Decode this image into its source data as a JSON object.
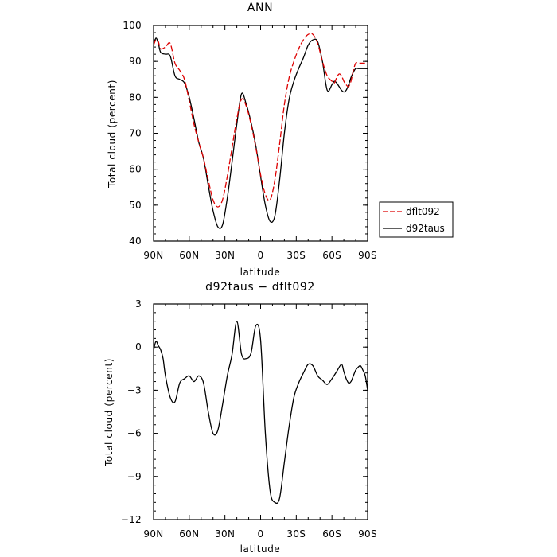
{
  "chart_data": [
    {
      "type": "line",
      "title": "ANN",
      "xlabel": "latitude",
      "ylabel": "Total cloud (percent)",
      "xlim": [
        90,
        -90
      ],
      "ylim": [
        40,
        100
      ],
      "xticks": [
        90,
        60,
        30,
        0,
        -30,
        -60,
        -90
      ],
      "xtick_labels": [
        "90N",
        "60N",
        "30N",
        "0",
        "30S",
        "60S",
        "90S"
      ],
      "yticks": [
        40,
        50,
        60,
        70,
        80,
        90,
        100
      ],
      "ytick_labels": [
        "40",
        "50",
        "60",
        "70",
        "80",
        "90",
        "100"
      ],
      "grid": false,
      "legend": {
        "placement": "right",
        "entries": [
          "dflt092",
          "d92taus"
        ]
      },
      "series": [
        {
          "name": "dflt092",
          "color": "#dd0000",
          "dash": "dashed",
          "x": [
            90,
            88,
            86,
            84,
            80,
            76,
            72,
            68,
            64,
            60,
            56,
            52,
            48,
            44,
            40,
            36,
            32,
            28,
            24,
            20,
            16,
            12,
            8,
            4,
            0,
            -4,
            -8,
            -12,
            -16,
            -20,
            -24,
            -28,
            -32,
            -36,
            -40,
            -44,
            -48,
            -52,
            -56,
            -60,
            -62,
            -64,
            -66,
            -68,
            -70,
            -72,
            -74,
            -76,
            -78,
            -80,
            -82,
            -84,
            -86,
            -88,
            -90
          ],
          "values": [
            94.5,
            96.0,
            95.5,
            93.5,
            94.0,
            95.0,
            89.5,
            87.5,
            85.0,
            79.0,
            72.5,
            67.5,
            63.0,
            57.0,
            51.5,
            49.5,
            51.5,
            58.0,
            66.0,
            74.0,
            79.5,
            77.5,
            72.5,
            66.0,
            58.5,
            53.0,
            51.5,
            57.0,
            67.0,
            78.0,
            85.5,
            90.0,
            93.5,
            96.0,
            97.5,
            97.5,
            95.0,
            90.0,
            86.0,
            84.5,
            84.0,
            85.5,
            86.5,
            86.0,
            84.5,
            83.5,
            83.0,
            84.5,
            87.5,
            89.5,
            89.5,
            89.5,
            89.5,
            89.5,
            89.5
          ]
        },
        {
          "name": "d92taus",
          "color": "#000000",
          "dash": "solid",
          "x": [
            90,
            88,
            86,
            84,
            80,
            76,
            72,
            68,
            64,
            60,
            56,
            52,
            48,
            44,
            40,
            36,
            32,
            28,
            24,
            20,
            16,
            12,
            8,
            4,
            0,
            -4,
            -8,
            -12,
            -16,
            -20,
            -24,
            -28,
            -32,
            -36,
            -40,
            -44,
            -48,
            -52,
            -56,
            -60,
            -62,
            -64,
            -66,
            -68,
            -70,
            -72,
            -74,
            -76,
            -78,
            -80,
            -82,
            -84,
            -86,
            -88,
            -90
          ],
          "values": [
            94.5,
            96.5,
            95.0,
            92.5,
            92.0,
            91.5,
            86.0,
            85.0,
            84.0,
            80.0,
            74.0,
            67.5,
            63.0,
            55.5,
            48.5,
            44.0,
            44.5,
            52.0,
            62.0,
            72.5,
            81.0,
            78.0,
            73.0,
            66.5,
            58.0,
            50.0,
            45.5,
            47.0,
            57.0,
            70.0,
            79.5,
            84.5,
            88.0,
            91.0,
            94.5,
            96.0,
            95.5,
            90.0,
            82.0,
            83.5,
            84.5,
            84.0,
            83.0,
            82.0,
            81.5,
            82.0,
            83.5,
            85.5,
            87.0,
            88.0,
            88.0,
            88.0,
            88.0,
            88.0,
            88.0
          ]
        }
      ]
    },
    {
      "type": "line",
      "title": "d92taus − dflt092",
      "xlabel": "latitude",
      "ylabel": "Total cloud (percent)",
      "xlim": [
        90,
        -90
      ],
      "ylim": [
        -12,
        3
      ],
      "xticks": [
        90,
        60,
        30,
        0,
        -30,
        -60,
        -90
      ],
      "xtick_labels": [
        "90N",
        "60N",
        "30N",
        "0",
        "30S",
        "60S",
        "90S"
      ],
      "yticks": [
        3,
        0,
        -3,
        -6,
        -9,
        -12
      ],
      "ytick_labels": [
        "3",
        "0",
        "−3",
        "−6",
        "−9",
        "−12"
      ],
      "grid": false,
      "series": [
        {
          "color": "#000000",
          "dash": "solid",
          "x": [
            90,
            88,
            86,
            84,
            82,
            80,
            76,
            72,
            68,
            64,
            60,
            56,
            52,
            48,
            44,
            40,
            36,
            32,
            28,
            24,
            20,
            16,
            12,
            8,
            4,
            0,
            -4,
            -8,
            -12,
            -16,
            -20,
            -24,
            -28,
            -32,
            -36,
            -40,
            -44,
            -48,
            -52,
            -56,
            -60,
            -64,
            -68,
            -70,
            -72,
            -74,
            -76,
            -78,
            -80,
            -82,
            -84,
            -86,
            -88,
            -90
          ],
          "values": [
            -0.2,
            0.4,
            0.1,
            -0.2,
            -0.8,
            -2.0,
            -3.5,
            -3.8,
            -2.5,
            -2.2,
            -2.0,
            -2.4,
            -2.0,
            -2.5,
            -4.5,
            -6.0,
            -5.8,
            -4.0,
            -2.0,
            -0.5,
            1.8,
            -0.5,
            -0.8,
            -0.4,
            1.5,
            0.5,
            -6.0,
            -10.0,
            -10.8,
            -10.5,
            -8.0,
            -5.5,
            -3.5,
            -2.5,
            -1.8,
            -1.2,
            -1.3,
            -2.0,
            -2.3,
            -2.6,
            -2.2,
            -1.7,
            -1.2,
            -1.7,
            -2.2,
            -2.5,
            -2.4,
            -2.0,
            -1.6,
            -1.4,
            -1.3,
            -1.6,
            -2.0,
            -3.0
          ]
        }
      ]
    }
  ]
}
